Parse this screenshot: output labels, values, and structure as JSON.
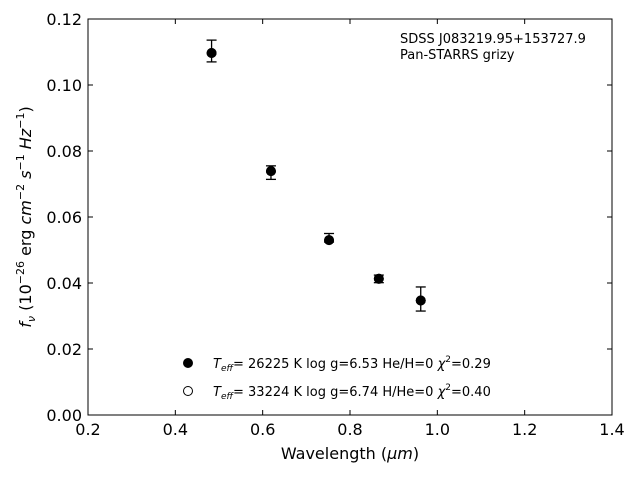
{
  "chart_data": {
    "type": "scatter",
    "xlabel_main": "Wavelength (",
    "xlabel_unit": "μm",
    "xlabel_close": ")",
    "ylabel_parts": {
      "f": "f",
      "nu": "ν",
      "open": " (10",
      "exp1": "−26",
      "erg": " erg ",
      "cm": "cm",
      "exp2": "−2",
      "s": " s",
      "exp3": "−1",
      "hz": " Hz",
      "exp4": "−1",
      "close": ")"
    },
    "xlim": [
      0.2,
      1.4
    ],
    "ylim": [
      0.0,
      0.12
    ],
    "xticks": [
      0.2,
      0.4,
      0.6,
      0.8,
      1.0,
      1.2,
      1.4
    ],
    "yticks": [
      0.0,
      0.02,
      0.04,
      0.06,
      0.08,
      0.1,
      0.12
    ],
    "xtick_labels": [
      "0.2",
      "0.4",
      "0.6",
      "0.8",
      "1.0",
      "1.2",
      "1.4"
    ],
    "ytick_labels": [
      "0.00",
      "0.02",
      "0.04",
      "0.06",
      "0.08",
      "0.10",
      "0.12"
    ],
    "annotation_lines": [
      "SDSS J083219.95+153727.9",
      "Pan-STARRS grizy"
    ],
    "observed": {
      "x": [
        0.483,
        0.619,
        0.752,
        0.866,
        0.962
      ],
      "y": [
        0.1101,
        0.0742,
        0.0533,
        0.0414,
        0.0351
      ],
      "err_low": [
        0.0031,
        0.0028,
        0.0009,
        0.0013,
        0.0036
      ],
      "err_high": [
        0.0035,
        0.0013,
        0.0017,
        0.001,
        0.0037
      ]
    },
    "model_filled": {
      "x": [
        0.483,
        0.619,
        0.752,
        0.866,
        0.962
      ],
      "y": [
        0.1097,
        0.0739,
        0.053,
        0.0413,
        0.0347
      ]
    },
    "model_open": {
      "x": [
        0.483,
        0.619,
        0.752,
        0.866,
        0.962
      ],
      "y": [
        0.1097,
        0.0739,
        0.053,
        0.0413,
        0.0347
      ]
    },
    "legend": [
      {
        "marker": "filled",
        "teff_symbol": "T",
        "teff_sub": "eff",
        "teff_rest": "= 26225 K  log g=6.53  He/H=0  ",
        "chi": "χ",
        "chi_exp": "2",
        "chi_rest": "=0.29"
      },
      {
        "marker": "open",
        "teff_symbol": "T",
        "teff_sub": "eff",
        "teff_rest": "= 33224 K  log g=6.74  H/He=0  ",
        "chi": "χ",
        "chi_exp": "2",
        "chi_rest": "=0.40"
      }
    ],
    "legend_placement": "lower-center",
    "grid": false
  }
}
